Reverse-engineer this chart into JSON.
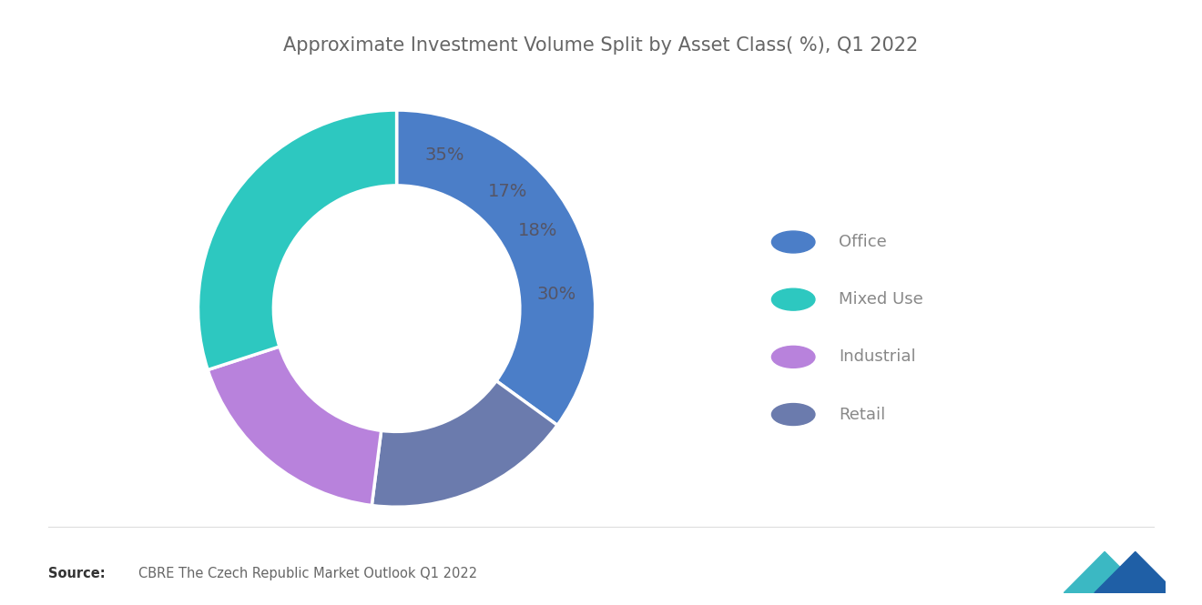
{
  "title": "Approximate Investment Volume Split by Asset Class( %), Q1 2022",
  "slices": [
    35,
    17,
    18,
    30
  ],
  "labels": [
    "35%",
    "17%",
    "18%",
    "30%"
  ],
  "slice_colors": [
    "#4B7EC8",
    "#6B7BAD",
    "#B882DC",
    "#2DC8C0"
  ],
  "legend_colors": [
    "#4B7EC8",
    "#2DC8C0",
    "#B882DC",
    "#6B7BAD"
  ],
  "legend_labels": [
    "Office",
    "Mixed Use",
    "Industrial",
    "Retail"
  ],
  "source_bold": "Source:",
  "source_text": "CBRE The Czech Republic Market Outlook Q1 2022",
  "background_color": "#FFFFFF",
  "title_fontsize": 15,
  "label_fontsize": 14,
  "legend_fontsize": 13,
  "label_color": "#555566"
}
